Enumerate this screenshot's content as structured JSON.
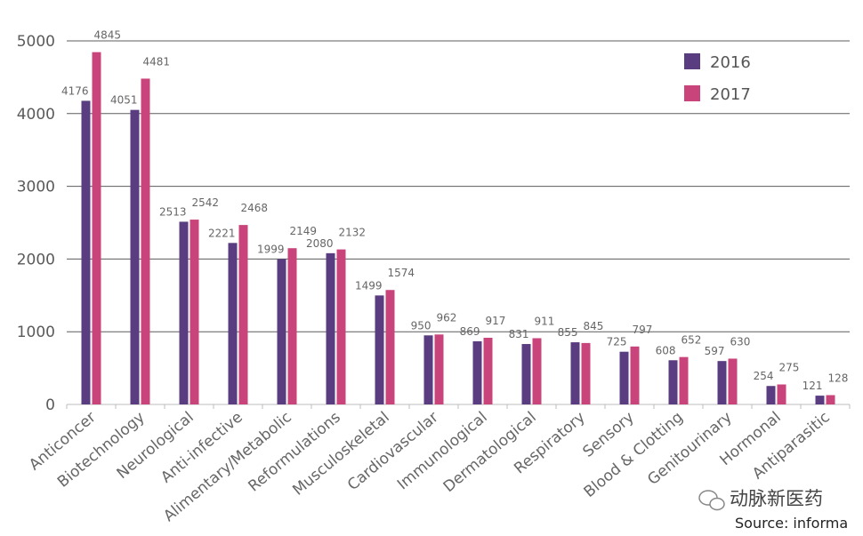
{
  "chart_data": {
    "type": "bar",
    "categories": [
      "Anticoncer",
      "Biotechnology",
      "Neurological",
      "Anti-infective",
      "Alimentary/Metabolic",
      "Reformulations",
      "Musculoskeletal",
      "Cardiovascular",
      "Immunological",
      "Dermatological",
      "Respiratory",
      "Sensory",
      "Blood & Clotting",
      "Genitourinary",
      "Hormonal",
      "Antiparasitic"
    ],
    "series": [
      {
        "name": "2016",
        "color": "#5a3d80",
        "values": [
          4176,
          4051,
          2513,
          2221,
          1999,
          2080,
          1499,
          950,
          869,
          831,
          855,
          725,
          608,
          597,
          254,
          121
        ]
      },
      {
        "name": "2017",
        "color": "#c8447a",
        "values": [
          4845,
          4481,
          2542,
          2468,
          2149,
          2132,
          1574,
          962,
          917,
          911,
          845,
          797,
          652,
          630,
          275,
          128
        ]
      }
    ],
    "yticks": [
      0,
      1000,
      2000,
      3000,
      4000,
      5000
    ],
    "ylim": [
      0,
      5000
    ],
    "grid": true,
    "legend": "top-right",
    "title": "",
    "xlabel": "",
    "ylabel": ""
  },
  "watermark": "动脉新医药",
  "source": "Source:  informa"
}
